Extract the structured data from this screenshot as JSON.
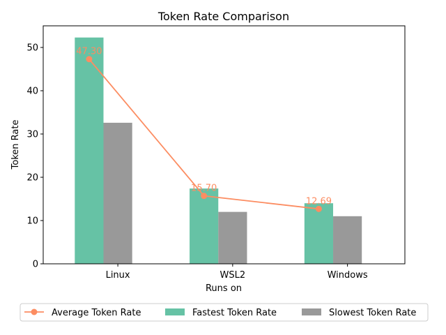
{
  "chart_data": {
    "type": "bar",
    "title": "Token Rate Comparison",
    "xlabel": "Runs on",
    "ylabel": "Token Rate",
    "categories": [
      "Linux",
      "WSL2",
      "Windows"
    ],
    "ylim": [
      0,
      55
    ],
    "yticks": [
      0,
      10,
      20,
      30,
      40,
      50
    ],
    "grid": false,
    "legend_position": "bottom",
    "series": [
      {
        "name": "Fastest Token Rate",
        "kind": "bar",
        "color": "#66c2a5",
        "values": [
          52.3,
          17.4,
          14.0
        ]
      },
      {
        "name": "Slowest Token Rate",
        "kind": "bar",
        "color": "#999999",
        "values": [
          32.6,
          12.0,
          11.0
        ]
      },
      {
        "name": "Average Token Rate",
        "kind": "line",
        "marker": "circle",
        "color": "#fc8d62",
        "values": [
          47.3,
          15.7,
          12.69
        ]
      }
    ],
    "annotations": [
      "47.30",
      "15.70",
      "12.69"
    ]
  }
}
